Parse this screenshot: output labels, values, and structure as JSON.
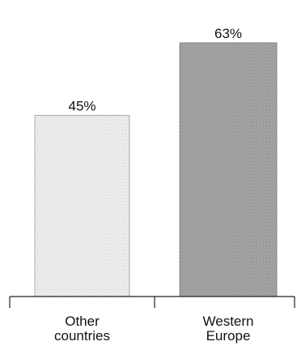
{
  "chart_data": {
    "type": "bar",
    "categories": [
      [
        "Other",
        "countries"
      ],
      [
        "Western",
        "Europe"
      ]
    ],
    "values": [
      45,
      63
    ],
    "value_labels": [
      "45%",
      "63%"
    ],
    "unit": "%",
    "ylim": [
      0,
      70
    ],
    "grid": false,
    "legend": "none",
    "title": "",
    "xlabel": "",
    "ylabel": "",
    "bar_colors": [
      "#e6e6e6",
      "#a8a8a8"
    ],
    "bar_edge_colors": [
      "#9a9a9a",
      "#7d7d7d"
    ]
  }
}
